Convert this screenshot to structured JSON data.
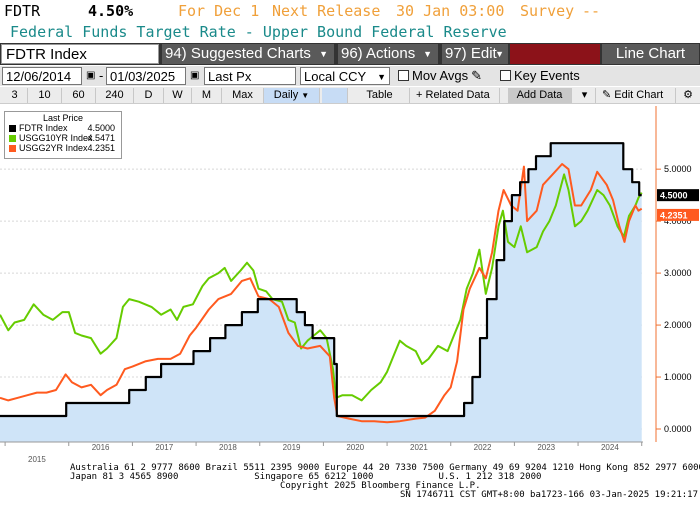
{
  "header": {
    "ticker": "FDTR",
    "value": "4.50%",
    "for_label": "For Dec 1",
    "next_release_label": "Next Release",
    "next_release_date": "30 Jan 03:00",
    "survey_label": "Survey",
    "survey_value": "--",
    "description": "Federal Funds Target Rate - Upper Bound Federal Reserve"
  },
  "toolbar1": {
    "security": "FDTR Index",
    "suggested": "94) Suggested Charts",
    "actions": "96) Actions",
    "edit": "97) Edit",
    "chart_type": "Line Chart"
  },
  "toolbar2": {
    "start_date": "12/06/2014",
    "end_date": "01/03/2025",
    "field": "Last Px",
    "currency": "Local CCY",
    "mov_avgs": "Mov Avgs",
    "key_events": "Key Events"
  },
  "toolbar3": {
    "periods": [
      "3",
      "10",
      "60",
      "240",
      "D",
      "W",
      "M",
      "Max"
    ],
    "frequency": "Daily",
    "table": "Table",
    "related": "Related Data",
    "add_data": "Add Data",
    "edit_chart": "Edit Chart"
  },
  "legend": {
    "title": "Last Price",
    "items": [
      {
        "name": "FDTR Index",
        "value": "4.5000",
        "color": "#000000"
      },
      {
        "name": "USGG10YR Index",
        "value": "4.5471",
        "color": "#66cc00"
      },
      {
        "name": "USGG2YR Index",
        "value": "4.2351",
        "color": "#ff5a1f"
      }
    ]
  },
  "chart_data": {
    "type": "line",
    "ylim": [
      -0.25,
      6.1
    ],
    "xlim": [
      2014.92,
      2025.02
    ],
    "y_ticks": [
      "0.0000",
      "1.0000",
      "2.0000",
      "3.0000",
      "4.0000",
      "5.0000"
    ],
    "year_labels_top": [
      "2016",
      "2017",
      "2018",
      "2019",
      "2020",
      "2021",
      "2022",
      "2023",
      "2024"
    ],
    "year_labels_bottom": [
      "2015"
    ],
    "last_labels": [
      {
        "value": "4.5000",
        "y": 4.5,
        "bg": "#000000",
        "fg": "#ffffff"
      },
      {
        "value": "4.2351",
        "y": 4.2351,
        "bg": "#ff5a1f",
        "fg": "#ffffff"
      }
    ],
    "series": [
      {
        "name": "FDTR Index",
        "step": true,
        "fill": "#cfe4f8",
        "color": "#000000",
        "points": [
          [
            2014.92,
            0.25
          ],
          [
            2015.96,
            0.25
          ],
          [
            2015.96,
            0.5
          ],
          [
            2016.95,
            0.5
          ],
          [
            2016.95,
            0.75
          ],
          [
            2017.21,
            0.75
          ],
          [
            2017.21,
            1.0
          ],
          [
            2017.45,
            1.0
          ],
          [
            2017.45,
            1.25
          ],
          [
            2017.96,
            1.25
          ],
          [
            2017.96,
            1.5
          ],
          [
            2018.22,
            1.5
          ],
          [
            2018.22,
            1.75
          ],
          [
            2018.46,
            1.75
          ],
          [
            2018.46,
            2.0
          ],
          [
            2018.72,
            2.0
          ],
          [
            2018.72,
            2.25
          ],
          [
            2018.97,
            2.25
          ],
          [
            2018.97,
            2.5
          ],
          [
            2019.58,
            2.5
          ],
          [
            2019.58,
            2.25
          ],
          [
            2019.71,
            2.25
          ],
          [
            2019.71,
            2.0
          ],
          [
            2019.83,
            2.0
          ],
          [
            2019.83,
            1.75
          ],
          [
            2020.17,
            1.75
          ],
          [
            2020.17,
            1.25
          ],
          [
            2020.21,
            1.25
          ],
          [
            2020.21,
            0.25
          ],
          [
            2022.21,
            0.25
          ],
          [
            2022.21,
            0.5
          ],
          [
            2022.34,
            0.5
          ],
          [
            2022.34,
            1.0
          ],
          [
            2022.46,
            1.0
          ],
          [
            2022.46,
            1.75
          ],
          [
            2022.57,
            1.75
          ],
          [
            2022.57,
            2.5
          ],
          [
            2022.72,
            2.5
          ],
          [
            2022.72,
            3.25
          ],
          [
            2022.84,
            3.25
          ],
          [
            2022.84,
            4.0
          ],
          [
            2022.96,
            4.0
          ],
          [
            2022.96,
            4.5
          ],
          [
            2023.09,
            4.5
          ],
          [
            2023.09,
            4.75
          ],
          [
            2023.22,
            4.75
          ],
          [
            2023.22,
            5.0
          ],
          [
            2023.34,
            5.0
          ],
          [
            2023.34,
            5.25
          ],
          [
            2023.57,
            5.25
          ],
          [
            2023.57,
            5.5
          ],
          [
            2024.71,
            5.5
          ],
          [
            2024.71,
            5.0
          ],
          [
            2024.85,
            5.0
          ],
          [
            2024.85,
            4.75
          ],
          [
            2024.96,
            4.75
          ],
          [
            2024.96,
            4.5
          ],
          [
            2025.0,
            4.5
          ]
        ]
      },
      {
        "name": "USGG10YR Index",
        "color": "#66cc00",
        "points": [
          [
            2014.92,
            2.2
          ],
          [
            2015.05,
            1.9
          ],
          [
            2015.15,
            2.05
          ],
          [
            2015.3,
            2.1
          ],
          [
            2015.45,
            2.4
          ],
          [
            2015.6,
            2.2
          ],
          [
            2015.75,
            2.1
          ],
          [
            2015.9,
            2.25
          ],
          [
            2016.0,
            2.25
          ],
          [
            2016.1,
            1.85
          ],
          [
            2016.2,
            1.8
          ],
          [
            2016.35,
            1.75
          ],
          [
            2016.5,
            1.45
          ],
          [
            2016.6,
            1.55
          ],
          [
            2016.75,
            1.75
          ],
          [
            2016.85,
            2.35
          ],
          [
            2016.95,
            2.5
          ],
          [
            2017.1,
            2.45
          ],
          [
            2017.3,
            2.35
          ],
          [
            2017.45,
            2.2
          ],
          [
            2017.6,
            2.3
          ],
          [
            2017.7,
            2.1
          ],
          [
            2017.8,
            2.35
          ],
          [
            2017.95,
            2.4
          ],
          [
            2018.1,
            2.75
          ],
          [
            2018.2,
            2.9
          ],
          [
            2018.35,
            3.0
          ],
          [
            2018.45,
            3.1
          ],
          [
            2018.55,
            2.85
          ],
          [
            2018.7,
            3.05
          ],
          [
            2018.8,
            3.2
          ],
          [
            2018.9,
            3.05
          ],
          [
            2018.98,
            2.7
          ],
          [
            2019.1,
            2.65
          ],
          [
            2019.2,
            2.5
          ],
          [
            2019.35,
            2.45
          ],
          [
            2019.45,
            2.1
          ],
          [
            2019.55,
            2.05
          ],
          [
            2019.65,
            1.55
          ],
          [
            2019.75,
            1.7
          ],
          [
            2019.85,
            1.8
          ],
          [
            2019.95,
            1.9
          ],
          [
            2020.05,
            1.75
          ],
          [
            2020.15,
            1.15
          ],
          [
            2020.2,
            0.6
          ],
          [
            2020.3,
            0.65
          ],
          [
            2020.45,
            0.65
          ],
          [
            2020.6,
            0.55
          ],
          [
            2020.75,
            0.75
          ],
          [
            2020.9,
            0.9
          ],
          [
            2021.0,
            1.1
          ],
          [
            2021.1,
            1.4
          ],
          [
            2021.2,
            1.7
          ],
          [
            2021.3,
            1.6
          ],
          [
            2021.45,
            1.5
          ],
          [
            2021.55,
            1.25
          ],
          [
            2021.65,
            1.35
          ],
          [
            2021.8,
            1.6
          ],
          [
            2021.95,
            1.5
          ],
          [
            2022.05,
            1.8
          ],
          [
            2022.15,
            2.1
          ],
          [
            2022.25,
            2.7
          ],
          [
            2022.35,
            3.0
          ],
          [
            2022.45,
            3.45
          ],
          [
            2022.55,
            2.6
          ],
          [
            2022.65,
            3.1
          ],
          [
            2022.75,
            3.9
          ],
          [
            2022.82,
            4.2
          ],
          [
            2022.9,
            3.6
          ],
          [
            2023.0,
            3.5
          ],
          [
            2023.1,
            3.9
          ],
          [
            2023.2,
            3.4
          ],
          [
            2023.35,
            3.5
          ],
          [
            2023.45,
            3.8
          ],
          [
            2023.55,
            4.0
          ],
          [
            2023.65,
            4.3
          ],
          [
            2023.78,
            4.9
          ],
          [
            2023.85,
            4.6
          ],
          [
            2023.95,
            3.9
          ],
          [
            2024.05,
            4.0
          ],
          [
            2024.15,
            4.2
          ],
          [
            2024.3,
            4.6
          ],
          [
            2024.4,
            4.5
          ],
          [
            2024.5,
            4.3
          ],
          [
            2024.62,
            3.9
          ],
          [
            2024.72,
            3.7
          ],
          [
            2024.8,
            4.1
          ],
          [
            2024.9,
            4.3
          ],
          [
            2024.95,
            4.45
          ],
          [
            2025.0,
            4.55
          ]
        ]
      },
      {
        "name": "USGG2YR Index",
        "color": "#ff5a1f",
        "points": [
          [
            2014.92,
            0.6
          ],
          [
            2015.05,
            0.55
          ],
          [
            2015.2,
            0.6
          ],
          [
            2015.35,
            0.65
          ],
          [
            2015.5,
            0.7
          ],
          [
            2015.65,
            0.7
          ],
          [
            2015.8,
            0.75
          ],
          [
            2015.95,
            1.05
          ],
          [
            2016.05,
            0.9
          ],
          [
            2016.2,
            0.8
          ],
          [
            2016.35,
            0.85
          ],
          [
            2016.5,
            0.65
          ],
          [
            2016.6,
            0.75
          ],
          [
            2016.75,
            0.85
          ],
          [
            2016.88,
            1.15
          ],
          [
            2017.0,
            1.2
          ],
          [
            2017.2,
            1.3
          ],
          [
            2017.4,
            1.35
          ],
          [
            2017.6,
            1.35
          ],
          [
            2017.75,
            1.45
          ],
          [
            2017.9,
            1.8
          ],
          [
            2018.0,
            1.95
          ],
          [
            2018.2,
            2.3
          ],
          [
            2018.35,
            2.5
          ],
          [
            2018.55,
            2.6
          ],
          [
            2018.72,
            2.85
          ],
          [
            2018.85,
            2.9
          ],
          [
            2018.98,
            2.55
          ],
          [
            2019.15,
            2.5
          ],
          [
            2019.3,
            2.35
          ],
          [
            2019.45,
            1.85
          ],
          [
            2019.6,
            1.6
          ],
          [
            2019.75,
            1.55
          ],
          [
            2019.95,
            1.6
          ],
          [
            2020.1,
            1.4
          ],
          [
            2020.17,
            0.6
          ],
          [
            2020.22,
            0.25
          ],
          [
            2020.4,
            0.2
          ],
          [
            2020.6,
            0.15
          ],
          [
            2020.8,
            0.15
          ],
          [
            2021.0,
            0.13
          ],
          [
            2021.2,
            0.15
          ],
          [
            2021.45,
            0.2
          ],
          [
            2021.6,
            0.22
          ],
          [
            2021.75,
            0.35
          ],
          [
            2021.9,
            0.65
          ],
          [
            2022.0,
            0.8
          ],
          [
            2022.1,
            1.3
          ],
          [
            2022.2,
            2.3
          ],
          [
            2022.3,
            2.7
          ],
          [
            2022.45,
            3.1
          ],
          [
            2022.55,
            2.9
          ],
          [
            2022.65,
            3.4
          ],
          [
            2022.75,
            4.2
          ],
          [
            2022.83,
            4.6
          ],
          [
            2022.95,
            4.3
          ],
          [
            2023.05,
            4.2
          ],
          [
            2023.15,
            5.05
          ],
          [
            2023.2,
            4.0
          ],
          [
            2023.35,
            4.2
          ],
          [
            2023.45,
            4.7
          ],
          [
            2023.6,
            4.9
          ],
          [
            2023.75,
            5.1
          ],
          [
            2023.85,
            5.0
          ],
          [
            2023.95,
            4.3
          ],
          [
            2024.05,
            4.3
          ],
          [
            2024.2,
            4.6
          ],
          [
            2024.3,
            4.95
          ],
          [
            2024.45,
            4.7
          ],
          [
            2024.55,
            4.4
          ],
          [
            2024.65,
            3.9
          ],
          [
            2024.73,
            3.6
          ],
          [
            2024.8,
            4.0
          ],
          [
            2024.9,
            4.3
          ],
          [
            2024.95,
            4.2
          ],
          [
            2025.0,
            4.24
          ]
        ]
      }
    ]
  },
  "footer": {
    "line1": "Australia 61 2 9777 8600 Brazil 5511 2395 9000 Europe 44 20 7330 7500 Germany 49 69 9204 1210 Hong Kong 852 2977 6000",
    "line2": "Japan 81 3 4565 8900              Singapore 65 6212 1000            U.S. 1 212 318 2000",
    "line3": "Copyright 2025 Bloomberg Finance L.P.",
    "line4": "SN 1746711 CST  GMT+8:00 ba1723-166 03-Jan-2025 19:21:17"
  }
}
